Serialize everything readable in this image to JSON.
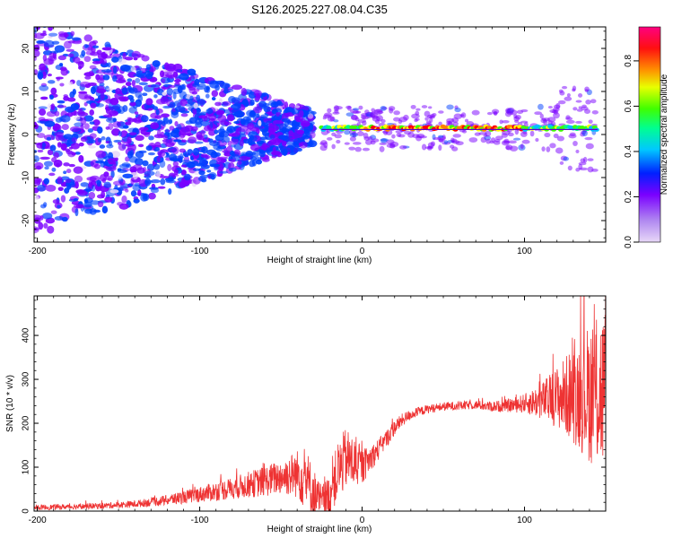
{
  "title": "S126.2025.227.08.04.C35",
  "chart_data": [
    {
      "type": "heatmap",
      "xlabel": "Height of straight line (km)",
      "ylabel": "Frequency (Hz)",
      "xlim": [
        -202,
        150
      ],
      "ylim": [
        -25,
        25
      ],
      "xticks": [
        -200,
        -100,
        0,
        100
      ],
      "yticks": [
        20,
        10,
        0,
        -10,
        -20
      ],
      "colorbar": {
        "label": "Normalized spectral amplitude",
        "range": [
          0.0,
          0.95
        ],
        "ticks": [
          0.0,
          0.2,
          0.4,
          0.6,
          0.8
        ],
        "colormap": [
          "#e8d8f8",
          "#7a00ff",
          "#0040ff",
          "#00c0ff",
          "#00ff80",
          "#40ff00",
          "#ffff00",
          "#ff8000",
          "#ff0000",
          "#ff0080"
        ]
      },
      "signal_band": {
        "x_range": [
          -25,
          145
        ],
        "frequency": 1.5,
        "peak_amplitude": 0.9
      },
      "noise_region": {
        "x_range": [
          -202,
          -30
        ],
        "frequency_spread": [
          -25,
          25
        ]
      }
    },
    {
      "type": "line",
      "xlabel": "Height of straight line (km)",
      "ylabel": "SNR (10 * v/v)",
      "xlim": [
        -202,
        150
      ],
      "ylim": [
        0,
        490
      ],
      "xticks": [
        -200,
        -100,
        0,
        100
      ],
      "yticks": [
        0,
        100,
        200,
        300,
        400
      ],
      "color": "#ee3333",
      "series": [
        {
          "name": "SNR",
          "x": [
            -202,
            -180,
            -160,
            -140,
            -120,
            -100,
            -90,
            -80,
            -70,
            -60,
            -50,
            -40,
            -35,
            -30,
            -25,
            -20,
            -15,
            -10,
            -5,
            0,
            5,
            10,
            15,
            20,
            25,
            30,
            40,
            50,
            60,
            70,
            80,
            90,
            100,
            110,
            120,
            130,
            140,
            150
          ],
          "values": [
            8,
            10,
            12,
            16,
            25,
            38,
            45,
            52,
            60,
            68,
            78,
            85,
            75,
            40,
            20,
            35,
            90,
            120,
            110,
            100,
            120,
            140,
            165,
            190,
            208,
            220,
            232,
            238,
            240,
            242,
            238,
            240,
            245,
            250,
            260,
            265,
            270,
            275
          ],
          "spread": [
            6,
            6,
            7,
            8,
            12,
            18,
            22,
            25,
            30,
            35,
            40,
            55,
            75,
            60,
            40,
            50,
            70,
            70,
            60,
            40,
            30,
            25,
            20,
            18,
            15,
            12,
            10,
            10,
            10,
            10,
            12,
            15,
            22,
            40,
            70,
            110,
            160,
            200
          ]
        }
      ]
    }
  ]
}
